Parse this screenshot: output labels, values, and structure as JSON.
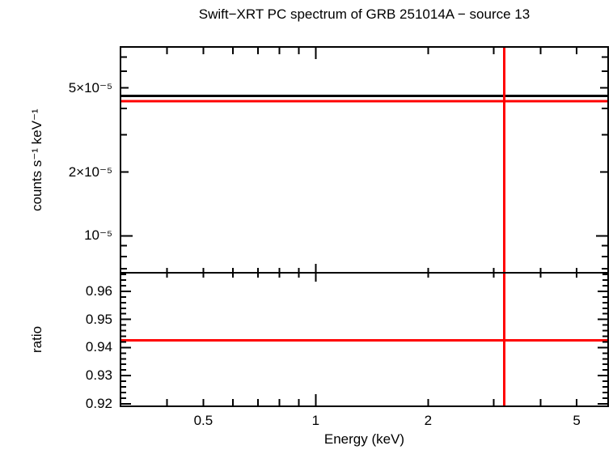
{
  "figure": {
    "background": "#ffffff",
    "frame_color": "#000000"
  },
  "chart_data": {
    "type": "line",
    "title": "Swift−XRT PC spectrum of GRB 251014A − source 13",
    "xlabel": "Energy (keV)",
    "x_scale": "log",
    "x_range": [
      0.3,
      6.07
    ],
    "x_ticks": [
      {
        "value": 0.5,
        "label": "0.5"
      },
      {
        "value": 1,
        "label": "1"
      },
      {
        "value": 2,
        "label": "2"
      },
      {
        "value": 5,
        "label": "5"
      }
    ],
    "x_minor_ticks": [
      0.4,
      0.6,
      0.7,
      0.8,
      0.9,
      3,
      4
    ],
    "x_decade_ticks": [
      1
    ],
    "grid": "off",
    "legend": "none",
    "colors": {
      "model": "#000000",
      "data": "#ff0000",
      "axes": "#000000"
    },
    "panels": [
      {
        "name": "spectrum",
        "ylabel": "counts s⁻¹ keV⁻¹",
        "y_scale": "log",
        "y_range": [
          6.7e-06,
          7.8e-05
        ],
        "y_ticks": [
          {
            "value": 5e-05,
            "label": "5×10⁻⁵"
          },
          {
            "value": 2e-05,
            "label": "2×10⁻⁵"
          },
          {
            "value": 1e-05,
            "label": "10⁻⁵"
          }
        ],
        "y_minor_ticks": [
          7e-05,
          6e-05,
          4e-05,
          3e-05,
          9e-06,
          8e-06,
          7e-06
        ],
        "y_decade_ticks": [
          1e-05
        ],
        "lines": [
          {
            "name": "model-level",
            "orientation": "horizontal",
            "value": 4.58e-05,
            "color": "#000000",
            "span": [
              0.3,
              6.07
            ]
          },
          {
            "name": "data-level",
            "orientation": "horizontal",
            "value": 4.32e-05,
            "color": "#ff0000",
            "span": [
              0.3,
              6.07
            ]
          },
          {
            "name": "bin-marker",
            "orientation": "vertical",
            "value": 3.2,
            "color": "#ff0000"
          }
        ]
      },
      {
        "name": "ratio",
        "ylabel": "ratio",
        "y_scale": "linear",
        "y_range": [
          0.9191,
          0.9666
        ],
        "y_ticks": [
          {
            "value": 0.96,
            "label": "0.96"
          },
          {
            "value": 0.95,
            "label": "0.95"
          },
          {
            "value": 0.94,
            "label": "0.94"
          },
          {
            "value": 0.93,
            "label": "0.93"
          },
          {
            "value": 0.92,
            "label": "0.92"
          }
        ],
        "y_minor_step": 0.002,
        "lines": [
          {
            "name": "ratio-level",
            "orientation": "horizontal",
            "value": 0.9425,
            "color": "#ff0000",
            "span": [
              0.3,
              6.07
            ]
          },
          {
            "name": "bin-marker",
            "orientation": "vertical",
            "value": 3.2,
            "color": "#ff0000"
          }
        ]
      }
    ]
  }
}
